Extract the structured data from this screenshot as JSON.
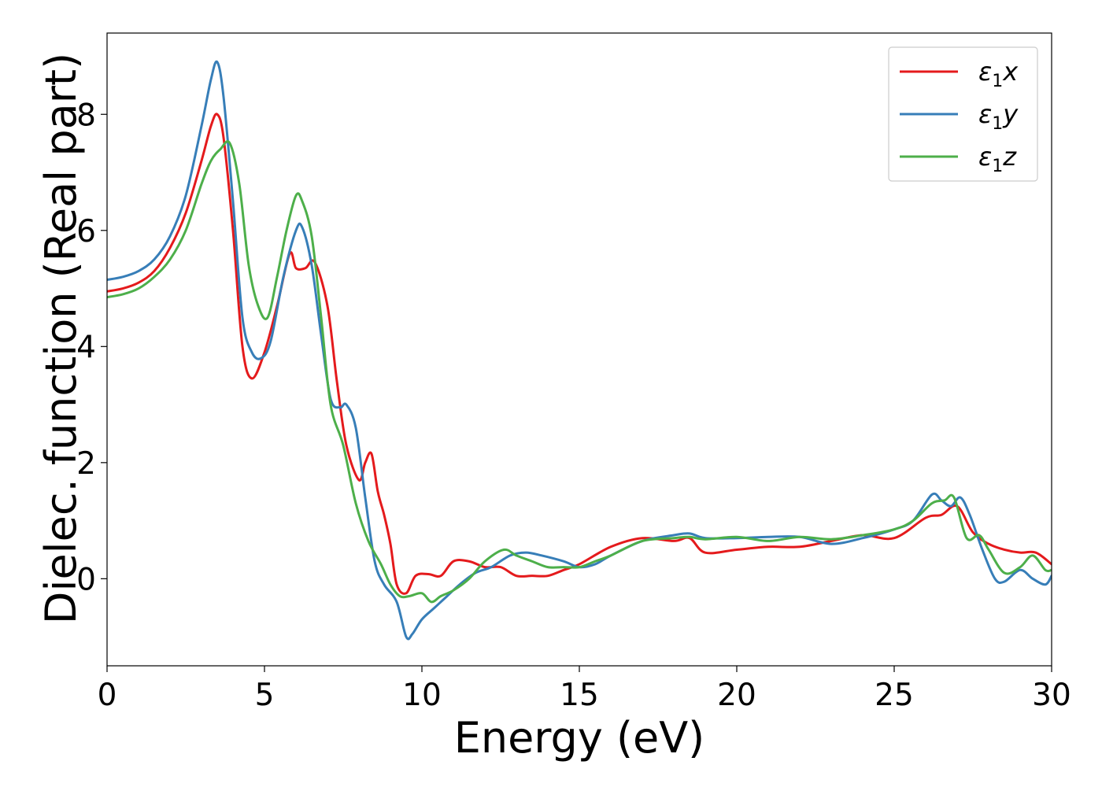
{
  "chart_data": {
    "type": "line",
    "xlabel": "Energy (eV)",
    "ylabel": "Dielec. function (Real part)",
    "xlim": [
      0,
      30
    ],
    "ylim": [
      -1.5,
      9.4
    ],
    "xticks": [
      0,
      5,
      10,
      15,
      20,
      25,
      30
    ],
    "yticks": [
      0,
      2,
      4,
      6,
      8
    ],
    "grid": false,
    "legend_position": "top-right",
    "series": [
      {
        "name": "ε1x",
        "legend_symbol": "ε",
        "legend_sub": "1",
        "legend_var": "x",
        "color": "#e41a1c",
        "x": [
          0,
          0.5,
          1.0,
          1.5,
          2.0,
          2.5,
          3.0,
          3.3,
          3.5,
          3.7,
          4.0,
          4.3,
          4.6,
          5.0,
          5.4,
          5.8,
          6.0,
          6.3,
          6.6,
          7.0,
          7.3,
          7.6,
          8.0,
          8.2,
          8.4,
          8.6,
          8.8,
          9.0,
          9.2,
          9.5,
          9.8,
          10.2,
          10.6,
          11.0,
          11.5,
          12.0,
          12.5,
          13.0,
          13.5,
          14.0,
          14.5,
          15.0,
          16.0,
          17.0,
          18.0,
          18.5,
          19.0,
          20.0,
          21.0,
          22.0,
          23.0,
          24.0,
          25.0,
          26.0,
          26.5,
          27.0,
          27.5,
          28.0,
          28.5,
          29.0,
          29.5,
          30.0
        ],
        "y": [
          4.95,
          5.0,
          5.1,
          5.3,
          5.7,
          6.3,
          7.2,
          7.8,
          8.0,
          7.6,
          6.0,
          4.0,
          3.45,
          3.9,
          4.7,
          5.6,
          5.35,
          5.35,
          5.45,
          4.7,
          3.4,
          2.3,
          1.7,
          2.0,
          2.15,
          1.5,
          1.1,
          0.6,
          -0.1,
          -0.25,
          0.05,
          0.08,
          0.05,
          0.3,
          0.3,
          0.2,
          0.2,
          0.05,
          0.05,
          0.05,
          0.15,
          0.25,
          0.55,
          0.7,
          0.65,
          0.7,
          0.45,
          0.5,
          0.55,
          0.55,
          0.65,
          0.75,
          0.7,
          1.05,
          1.1,
          1.25,
          0.8,
          0.6,
          0.5,
          0.45,
          0.45,
          0.25
        ]
      },
      {
        "name": "ε1y",
        "legend_symbol": "ε",
        "legend_sub": "1",
        "legend_var": "y",
        "color": "#377eb8",
        "x": [
          0,
          0.5,
          1.0,
          1.5,
          2.0,
          2.5,
          3.0,
          3.3,
          3.5,
          3.7,
          4.0,
          4.3,
          4.6,
          4.9,
          5.2,
          5.6,
          6.0,
          6.2,
          6.5,
          6.8,
          7.1,
          7.4,
          7.6,
          7.9,
          8.2,
          8.5,
          8.8,
          9.2,
          9.5,
          9.7,
          10.0,
          10.4,
          10.8,
          11.2,
          11.7,
          12.2,
          12.8,
          13.3,
          13.8,
          14.5,
          15.0,
          15.5,
          16.0,
          17.0,
          18.0,
          18.5,
          19.0,
          20.0,
          21.0,
          22.0,
          23.0,
          24.0,
          25.0,
          25.6,
          26.2,
          26.5,
          26.8,
          27.1,
          27.4,
          27.8,
          28.2,
          28.5,
          29.0,
          29.4,
          29.8,
          30.0
        ],
        "y": [
          5.15,
          5.2,
          5.3,
          5.5,
          5.9,
          6.6,
          7.8,
          8.6,
          8.9,
          8.3,
          6.5,
          4.5,
          3.9,
          3.8,
          4.1,
          5.2,
          6.0,
          6.05,
          5.4,
          4.2,
          3.1,
          2.95,
          3.0,
          2.6,
          1.4,
          0.3,
          -0.1,
          -0.4,
          -1.0,
          -0.95,
          -0.7,
          -0.5,
          -0.3,
          -0.1,
          0.1,
          0.2,
          0.4,
          0.45,
          0.4,
          0.3,
          0.2,
          0.25,
          0.4,
          0.65,
          0.75,
          0.78,
          0.7,
          0.7,
          0.72,
          0.72,
          0.6,
          0.7,
          0.85,
          1.0,
          1.45,
          1.35,
          1.25,
          1.4,
          1.1,
          0.5,
          0.0,
          -0.05,
          0.15,
          0.0,
          -0.1,
          0.05
        ]
      },
      {
        "name": "ε1z",
        "legend_symbol": "ε",
        "legend_sub": "1",
        "legend_var": "z",
        "color": "#4daf4a",
        "x": [
          0,
          0.5,
          1.0,
          1.5,
          2.0,
          2.5,
          3.0,
          3.3,
          3.6,
          3.9,
          4.2,
          4.5,
          4.8,
          5.1,
          5.4,
          5.7,
          6.0,
          6.2,
          6.5,
          6.8,
          7.1,
          7.5,
          7.9,
          8.3,
          8.7,
          9.0,
          9.3,
          9.6,
          10.0,
          10.3,
          10.6,
          11.0,
          11.5,
          12.0,
          12.6,
          13.0,
          13.5,
          14.0,
          14.5,
          15.0,
          15.5,
          16.0,
          17.0,
          18.0,
          18.5,
          19.0,
          20.0,
          21.0,
          22.0,
          23.0,
          24.0,
          25.0,
          25.6,
          26.2,
          26.6,
          26.9,
          27.3,
          27.7,
          28.0,
          28.5,
          29.0,
          29.4,
          29.8,
          30.0
        ],
        "y": [
          4.85,
          4.9,
          5.0,
          5.2,
          5.5,
          6.0,
          6.8,
          7.2,
          7.4,
          7.5,
          6.8,
          5.4,
          4.7,
          4.5,
          5.2,
          6.0,
          6.6,
          6.5,
          5.9,
          4.5,
          3.0,
          2.3,
          1.3,
          0.65,
          0.25,
          -0.1,
          -0.3,
          -0.3,
          -0.25,
          -0.4,
          -0.3,
          -0.2,
          0.0,
          0.3,
          0.5,
          0.4,
          0.3,
          0.2,
          0.2,
          0.2,
          0.3,
          0.4,
          0.65,
          0.7,
          0.72,
          0.68,
          0.72,
          0.65,
          0.72,
          0.68,
          0.75,
          0.85,
          1.0,
          1.3,
          1.35,
          1.4,
          0.7,
          0.75,
          0.5,
          0.1,
          0.2,
          0.4,
          0.15,
          0.15
        ]
      }
    ]
  }
}
